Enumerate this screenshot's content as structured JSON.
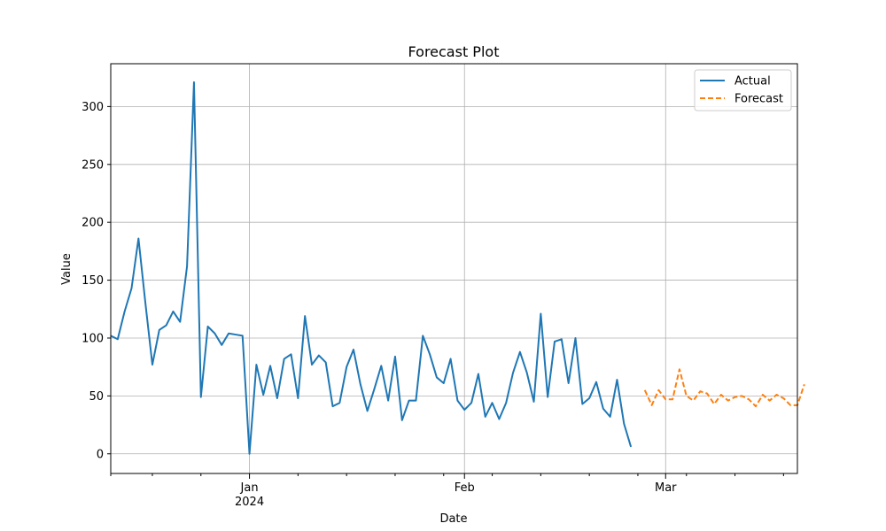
{
  "chart_data": {
    "type": "line",
    "title": "Forecast Plot",
    "xlabel": "Date",
    "ylabel": "Value",
    "grid": true,
    "legend_position": "top-right",
    "x_range": [
      "2023-12-12",
      "2024-03-20"
    ],
    "y_range": [
      -17,
      337
    ],
    "y_ticks": [
      0,
      50,
      100,
      150,
      200,
      250,
      300
    ],
    "x_major_ticks": [
      {
        "date": "2024-01-01",
        "label": "Jan",
        "sublabel": "2024"
      },
      {
        "date": "2024-02-01",
        "label": "Feb",
        "sublabel": ""
      },
      {
        "date": "2024-03-01",
        "label": "Mar",
        "sublabel": ""
      }
    ],
    "x_minor_ticks": [
      "2023-12-12",
      "2023-12-18",
      "2023-12-25",
      "2024-01-08",
      "2024-01-15",
      "2024-01-22",
      "2024-01-29",
      "2024-02-05",
      "2024-02-12",
      "2024-02-19",
      "2024-02-26",
      "2024-03-04",
      "2024-03-11",
      "2024-03-18"
    ],
    "series": [
      {
        "name": "Actual",
        "color": "#1f77b4",
        "style": "solid",
        "start_date": "2023-12-12",
        "values": [
          102,
          99,
          123,
          143,
          186,
          130,
          77,
          107,
          111,
          123,
          114,
          162,
          321,
          49,
          110,
          104,
          94,
          104,
          103,
          102,
          0,
          77,
          51,
          76,
          48,
          82,
          86,
          48,
          119,
          77,
          85,
          79,
          41,
          44,
          75,
          90,
          60,
          37,
          56,
          76,
          46,
          84,
          29,
          46,
          46,
          102,
          86,
          66,
          61,
          82,
          46,
          38,
          44,
          69,
          32,
          44,
          30,
          44,
          70,
          88,
          70,
          45,
          121,
          49,
          97,
          99,
          61,
          100,
          43,
          48,
          62,
          39,
          32,
          64,
          26,
          6
        ]
      },
      {
        "name": "Forecast",
        "color": "#ff7f0e",
        "style": "dashed",
        "start_date": "2024-02-27",
        "values": [
          55,
          42,
          55,
          47,
          47,
          73,
          50,
          46,
          54,
          52,
          43,
          51,
          46,
          49,
          50,
          47,
          41,
          51,
          46,
          51,
          48,
          42,
          42,
          60
        ]
      }
    ]
  }
}
